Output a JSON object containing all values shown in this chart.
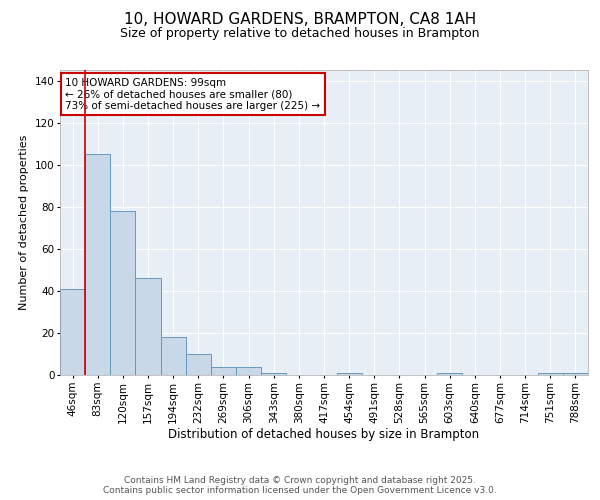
{
  "title": "10, HOWARD GARDENS, BRAMPTON, CA8 1AH",
  "subtitle": "Size of property relative to detached houses in Brampton",
  "xlabel": "Distribution of detached houses by size in Brampton",
  "ylabel": "Number of detached properties",
  "categories": [
    "46sqm",
    "83sqm",
    "120sqm",
    "157sqm",
    "194sqm",
    "232sqm",
    "269sqm",
    "306sqm",
    "343sqm",
    "380sqm",
    "417sqm",
    "454sqm",
    "491sqm",
    "528sqm",
    "565sqm",
    "603sqm",
    "640sqm",
    "677sqm",
    "714sqm",
    "751sqm",
    "788sqm"
  ],
  "values": [
    41,
    105,
    78,
    46,
    18,
    10,
    4,
    4,
    1,
    0,
    0,
    1,
    0,
    0,
    0,
    1,
    0,
    0,
    0,
    1,
    1
  ],
  "bar_color": "#c8d8e8",
  "bar_edge_color": "#6699bb",
  "vline_color": "#cc0000",
  "vline_x_index": 1,
  "annotation_text": "10 HOWARD GARDENS: 99sqm\n← 26% of detached houses are smaller (80)\n73% of semi-detached houses are larger (225) →",
  "annotation_box_edge_color": "#cc0000",
  "annotation_fontsize": 7.5,
  "ylim": [
    0,
    145
  ],
  "yticks": [
    0,
    20,
    40,
    60,
    80,
    100,
    120,
    140
  ],
  "background_color": "#e8eef5",
  "footer_line1": "Contains HM Land Registry data © Crown copyright and database right 2025.",
  "footer_line2": "Contains public sector information licensed under the Open Government Licence v3.0.",
  "title_fontsize": 11,
  "subtitle_fontsize": 9,
  "xlabel_fontsize": 8.5,
  "ylabel_fontsize": 8,
  "tick_fontsize": 7.5,
  "footer_fontsize": 6.5
}
